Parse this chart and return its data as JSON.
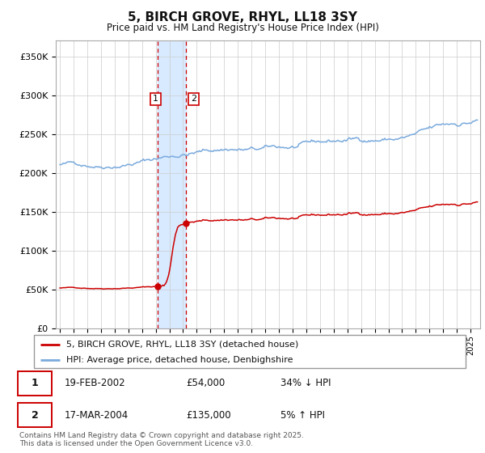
{
  "title": "5, BIRCH GROVE, RHYL, LL18 3SY",
  "subtitle": "Price paid vs. HM Land Registry's House Price Index (HPI)",
  "ylabel_ticks": [
    "£0",
    "£50K",
    "£100K",
    "£150K",
    "£200K",
    "£250K",
    "£300K",
    "£350K"
  ],
  "ytick_values": [
    0,
    50000,
    100000,
    150000,
    200000,
    250000,
    300000,
    350000
  ],
  "ylim": [
    0,
    370000
  ],
  "xlim_start": 1994.7,
  "xlim_end": 2025.7,
  "purchase1_year": 2002.13,
  "purchase1_price": 54000,
  "purchase2_year": 2004.21,
  "purchase2_price": 135000,
  "shade_x1": 2002.13,
  "shade_x2": 2004.21,
  "legend_line1": "5, BIRCH GROVE, RHYL, LL18 3SY (detached house)",
  "legend_line2": "HPI: Average price, detached house, Denbighshire",
  "table_row1": [
    "1",
    "19-FEB-2002",
    "£54,000",
    "34% ↓ HPI"
  ],
  "table_row2": [
    "2",
    "17-MAR-2004",
    "£135,000",
    "5% ↑ HPI"
  ],
  "footnote": "Contains HM Land Registry data © Crown copyright and database right 2025.\nThis data is licensed under the Open Government Licence v3.0.",
  "line_color_red": "#cc0000",
  "line_color_blue": "#7aaadd",
  "shade_color": "#d8eaff",
  "grid_color": "#cccccc",
  "bg_color": "#ffffff"
}
